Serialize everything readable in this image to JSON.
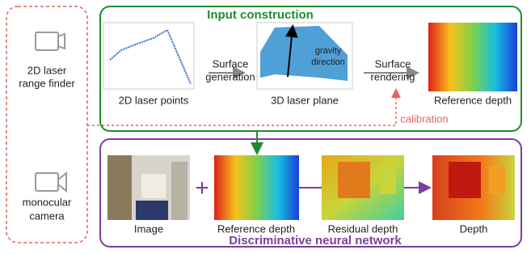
{
  "sensors": [
    {
      "label": [
        "2D laser",
        "range finder"
      ]
    },
    {
      "label": [
        "monocular",
        "camera"
      ]
    }
  ],
  "input_construction": {
    "title": "Input construction",
    "laser_points": "2D laser points",
    "surface_generation": [
      "Surface",
      "generation"
    ],
    "laser_plane": "3D laser plane",
    "gravity": [
      "gravity",
      "direction"
    ],
    "surface_rendering": [
      "Surface",
      "rendering"
    ],
    "reference_depth": "Reference depth"
  },
  "calibration": "calibration",
  "network": {
    "title": "Discriminative neural network",
    "image": "Image",
    "plus": "+",
    "reference_depth": "Reference depth",
    "residual_depth": "Residual depth",
    "depth": "Depth"
  }
}
